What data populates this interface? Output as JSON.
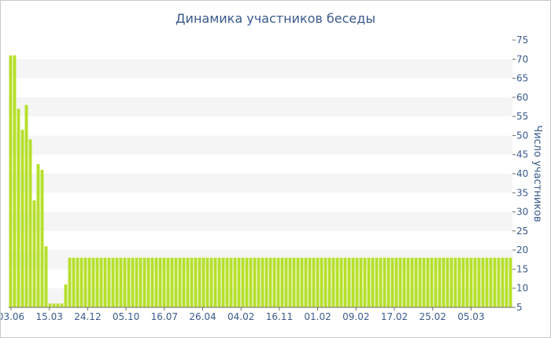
{
  "chart_data": {
    "type": "bar",
    "title": "Динамика участников беседы",
    "ylabel": "Число участников",
    "xlabel": "",
    "ylim": [
      5,
      75
    ],
    "yticks": [
      5,
      10,
      15,
      20,
      25,
      30,
      35,
      40,
      45,
      50,
      55,
      60,
      65,
      70,
      75
    ],
    "xtick_labels": [
      "03.06",
      "15.03",
      "24.12",
      "05.10",
      "16.07",
      "26.04",
      "04.02",
      "16.11",
      "01.02",
      "09.02",
      "17.02",
      "25.02",
      "05.03"
    ],
    "grid": true,
    "y_axis_position": "right",
    "bar_color": "#b5e02a",
    "values": [
      71,
      71,
      57,
      51.5,
      58,
      49,
      33,
      42.5,
      41,
      21,
      6,
      6,
      6,
      6,
      11,
      18,
      18,
      18,
      18,
      18,
      18,
      18,
      18,
      18,
      18,
      18,
      18,
      18,
      18,
      18,
      18,
      18,
      18,
      18,
      18,
      18,
      18,
      18,
      18,
      18,
      18,
      18,
      18,
      18,
      18,
      18,
      18,
      18,
      18,
      18,
      18,
      18,
      18,
      18,
      18,
      18,
      18,
      18,
      18,
      18,
      18,
      18,
      18,
      18,
      18,
      18,
      18,
      18,
      18,
      18,
      18,
      18,
      18,
      18,
      18,
      18,
      18,
      18,
      18,
      18,
      18,
      18,
      18,
      18,
      18,
      18,
      18,
      18,
      18,
      18,
      18,
      18,
      18,
      18,
      18,
      18,
      18,
      18,
      18,
      18,
      18,
      18,
      18,
      18,
      18,
      18,
      18,
      18,
      18,
      18,
      18,
      18,
      18,
      18,
      18,
      18,
      18,
      18,
      18,
      18,
      18,
      18,
      18,
      18,
      18,
      18,
      18,
      18
    ]
  }
}
